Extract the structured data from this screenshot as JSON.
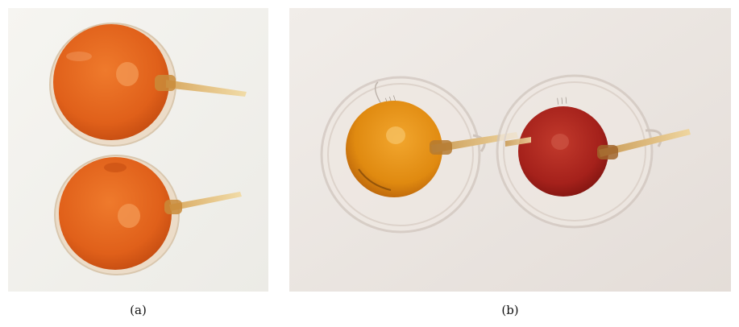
{
  "figure": {
    "panels": [
      {
        "caption": "(a)"
      },
      {
        "caption": "(b)"
      }
    ]
  },
  "colors": {
    "background_a": "#f3f2ee",
    "background_b": "#ece7e4",
    "liquid_orange": "#e0601a",
    "liquid_amber": "#e08a10",
    "liquid_red": "#a5211b",
    "glass_stem": "#e7c98a"
  }
}
